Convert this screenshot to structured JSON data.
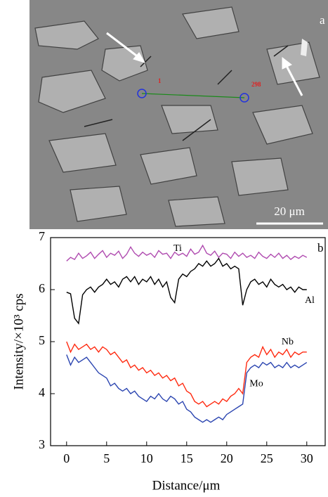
{
  "image": {
    "panel_label": "a",
    "point_start": "1",
    "point_end": "298",
    "scale_bar": "20 μm"
  },
  "chart_data": {
    "type": "line",
    "panel_label": "b",
    "x_label": "Distance/μm",
    "y_label": "Intensity/×10³ cps",
    "x": [
      0,
      0.5,
      1,
      1.5,
      2,
      2.5,
      3,
      3.5,
      4,
      4.5,
      5,
      5.5,
      6,
      6.5,
      7,
      7.5,
      8,
      8.5,
      9,
      9.5,
      10,
      10.5,
      11,
      11.5,
      12,
      12.5,
      13,
      13.5,
      14,
      14.5,
      15,
      15.5,
      16,
      16.5,
      17,
      17.5,
      18,
      18.5,
      19,
      19.5,
      20,
      20.5,
      21,
      21.5,
      22,
      22.5,
      23,
      23.5,
      24,
      24.5,
      25,
      25.5,
      26,
      26.5,
      27,
      27.5,
      28,
      28.5,
      29,
      29.5,
      30
    ],
    "series": [
      {
        "name": "Ti",
        "color": "#b04cb0",
        "values": [
          6.55,
          6.62,
          6.58,
          6.7,
          6.6,
          6.65,
          6.72,
          6.6,
          6.68,
          6.75,
          6.62,
          6.7,
          6.66,
          6.74,
          6.6,
          6.68,
          6.82,
          6.7,
          6.64,
          6.72,
          6.66,
          6.7,
          6.62,
          6.75,
          6.68,
          6.7,
          6.6,
          6.72,
          6.66,
          6.7,
          6.64,
          6.78,
          6.68,
          6.72,
          6.85,
          6.7,
          6.66,
          6.74,
          6.62,
          6.7,
          6.68,
          6.6,
          6.72,
          6.64,
          6.7,
          6.62,
          6.66,
          6.6,
          6.72,
          6.64,
          6.6,
          6.68,
          6.62,
          6.7,
          6.6,
          6.66,
          6.58,
          6.64,
          6.6,
          6.66,
          6.62
        ]
      },
      {
        "name": "Al",
        "color": "#000000",
        "values": [
          5.95,
          5.92,
          5.45,
          5.35,
          5.9,
          6.0,
          6.05,
          5.95,
          6.05,
          6.1,
          6.2,
          6.1,
          6.15,
          6.05,
          6.2,
          6.25,
          6.15,
          6.25,
          6.1,
          6.2,
          6.15,
          6.25,
          6.1,
          6.2,
          6.05,
          6.15,
          5.85,
          5.75,
          6.2,
          6.3,
          6.25,
          6.35,
          6.4,
          6.5,
          6.45,
          6.55,
          6.45,
          6.5,
          6.6,
          6.45,
          6.5,
          6.4,
          6.45,
          6.4,
          5.7,
          6.0,
          6.15,
          6.2,
          6.1,
          6.15,
          6.05,
          6.2,
          6.1,
          6.05,
          6.1,
          6.0,
          6.05,
          5.95,
          6.05,
          6.0,
          6.0
        ]
      },
      {
        "name": "Nb",
        "color": "#ff2a10",
        "values": [
          5.0,
          4.8,
          4.95,
          4.85,
          4.9,
          4.95,
          4.85,
          4.9,
          4.8,
          4.9,
          4.85,
          4.75,
          4.8,
          4.7,
          4.6,
          4.65,
          4.5,
          4.55,
          4.45,
          4.5,
          4.4,
          4.45,
          4.35,
          4.4,
          4.3,
          4.35,
          4.25,
          4.3,
          4.15,
          4.2,
          4.05,
          4.0,
          3.85,
          3.8,
          3.85,
          3.75,
          3.8,
          3.85,
          3.8,
          3.9,
          3.85,
          3.95,
          4.0,
          4.1,
          4.0,
          4.6,
          4.7,
          4.75,
          4.7,
          4.9,
          4.75,
          4.85,
          4.7,
          4.8,
          4.75,
          4.85,
          4.7,
          4.8,
          4.75,
          4.8,
          4.8
        ]
      },
      {
        "name": "Mo",
        "color": "#2a44b0",
        "values": [
          4.75,
          4.55,
          4.7,
          4.6,
          4.65,
          4.7,
          4.6,
          4.5,
          4.4,
          4.35,
          4.3,
          4.15,
          4.2,
          4.1,
          4.05,
          4.1,
          4.0,
          4.05,
          3.95,
          3.9,
          3.85,
          3.95,
          3.9,
          4.0,
          3.9,
          3.85,
          3.95,
          3.9,
          3.8,
          3.85,
          3.7,
          3.65,
          3.55,
          3.5,
          3.45,
          3.5,
          3.45,
          3.5,
          3.55,
          3.5,
          3.6,
          3.65,
          3.7,
          3.75,
          3.8,
          4.4,
          4.5,
          4.55,
          4.5,
          4.6,
          4.55,
          4.6,
          4.5,
          4.55,
          4.5,
          4.6,
          4.5,
          4.55,
          4.5,
          4.55,
          4.6
        ]
      }
    ],
    "xlim": [
      -2.0,
      32.3
    ],
    "ylim": [
      3,
      7
    ],
    "xticks": [
      0,
      5,
      10,
      15,
      20,
      25,
      30
    ],
    "yticks": [
      3,
      4,
      5,
      6,
      7
    ]
  }
}
